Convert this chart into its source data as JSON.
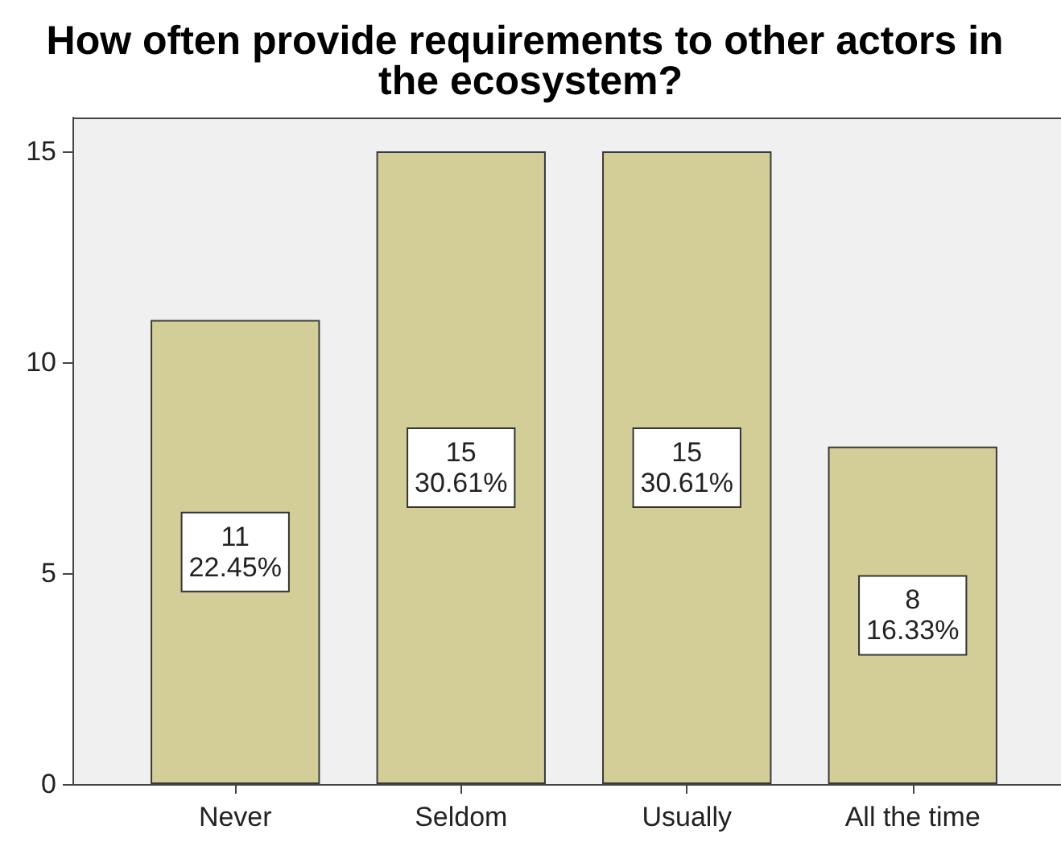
{
  "chart_data": {
    "type": "bar",
    "title": "How often provide requirements to other actors in the ecosystem?",
    "categories": [
      "Never",
      "Seldom",
      "Usually",
      "All the time"
    ],
    "values": [
      11,
      15,
      15,
      8
    ],
    "color": "#d3ce98",
    "value_labels": [
      "11\n22.45%",
      "15\n30.61%",
      "15\n30.61%",
      "8\n16.33%"
    ],
    "ylim": [
      0,
      15.8
    ],
    "yticks": [
      0,
      5,
      10,
      15
    ]
  }
}
